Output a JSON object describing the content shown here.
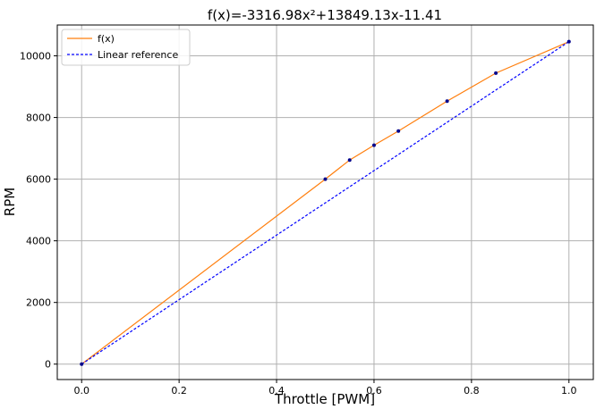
{
  "chart_data": {
    "type": "line",
    "title": "f(x)=-3316.98x²+13849.13x-11.41",
    "xlabel": "Throttle [PWM]",
    "ylabel": "RPM",
    "xlim": [
      -0.05,
      1.05
    ],
    "ylim": [
      -500,
      11000
    ],
    "xticks": [
      0.0,
      0.2,
      0.4,
      0.6,
      0.8,
      1.0
    ],
    "xtick_labels": [
      "0.0",
      "0.2",
      "0.4",
      "0.6",
      "0.8",
      "1.0"
    ],
    "yticks": [
      0,
      2000,
      4000,
      6000,
      8000,
      10000
    ],
    "ytick_labels": [
      "0",
      "2000",
      "4000",
      "6000",
      "8000",
      "10000"
    ],
    "grid": true,
    "legend_position": "top-left",
    "series": [
      {
        "name": "f(x)",
        "style": "solid",
        "color": "#ff7f0e",
        "x": [
          0.0,
          0.5,
          0.55,
          0.6,
          0.65,
          0.75,
          0.85,
          1.0
        ],
        "y": [
          0,
          6000,
          6620,
          7100,
          7560,
          8530,
          9440,
          10460
        ]
      },
      {
        "name": "Linear reference",
        "style": "dashed",
        "color": "#0000ff",
        "x": [
          0.0,
          1.0
        ],
        "y": [
          0,
          10460
        ]
      }
    ],
    "points": {
      "color": "#00008b",
      "x": [
        0.0,
        0.5,
        0.55,
        0.6,
        0.65,
        0.75,
        0.85,
        1.0
      ],
      "y": [
        0,
        6000,
        6620,
        7100,
        7560,
        8530,
        9440,
        10460
      ]
    }
  }
}
